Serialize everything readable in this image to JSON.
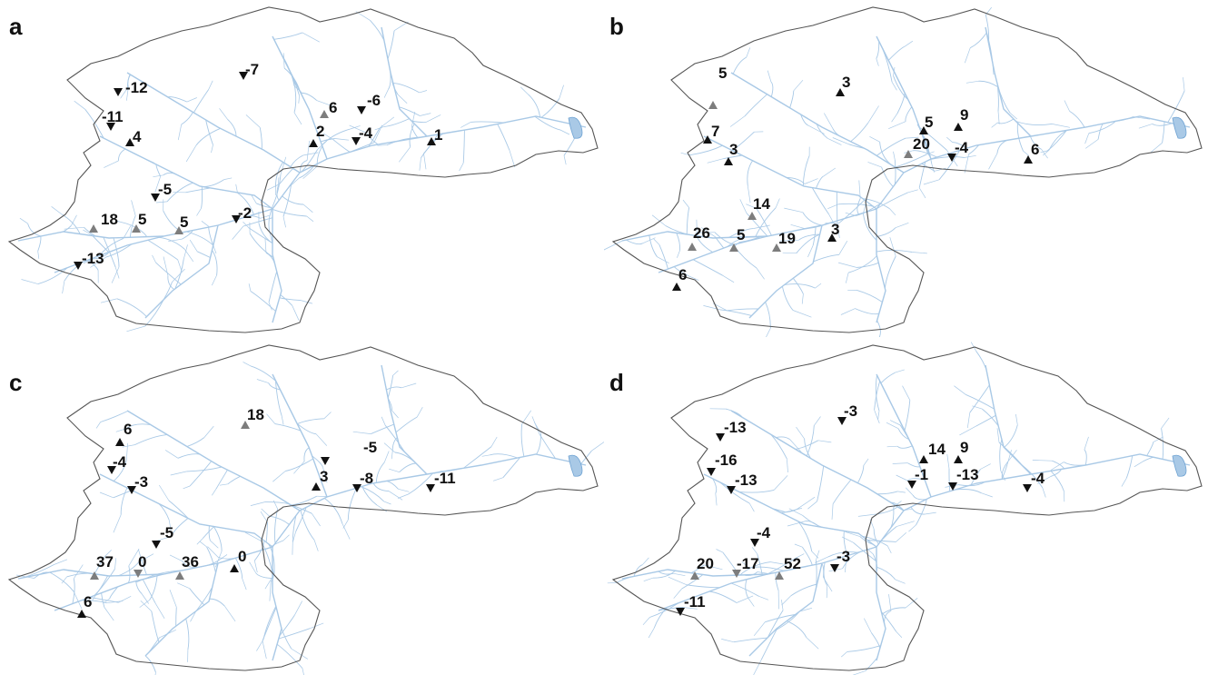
{
  "panels": [
    {
      "letter": "a",
      "stations": [
        {
          "id": "s01",
          "value": "-12",
          "dir": "down",
          "shade": "black"
        },
        {
          "id": "s02",
          "value": "-7",
          "dir": "down",
          "shade": "black"
        },
        {
          "id": "s03",
          "value": "-11",
          "dir": "down",
          "shade": "black"
        },
        {
          "id": "s04",
          "value": "4",
          "dir": "up",
          "shade": "black"
        },
        {
          "id": "s05",
          "value": "6",
          "dir": "up",
          "shade": "grey"
        },
        {
          "id": "s06",
          "value": "-6",
          "dir": "down",
          "shade": "black"
        },
        {
          "id": "s07",
          "value": "2",
          "dir": "up",
          "shade": "black"
        },
        {
          "id": "s08",
          "value": "-4",
          "dir": "down",
          "shade": "black"
        },
        {
          "id": "s09",
          "value": "1",
          "dir": "up",
          "shade": "black"
        },
        {
          "id": "s10",
          "value": "-5",
          "dir": "down",
          "shade": "black"
        },
        {
          "id": "s11",
          "value": "18",
          "dir": "up",
          "shade": "grey"
        },
        {
          "id": "s12",
          "value": "5",
          "dir": "up",
          "shade": "grey"
        },
        {
          "id": "s13",
          "value": "5",
          "dir": "up",
          "shade": "grey"
        },
        {
          "id": "s14",
          "value": "-2",
          "dir": "down",
          "shade": "black"
        },
        {
          "id": "s15",
          "value": "-13",
          "dir": "down",
          "shade": "black"
        }
      ]
    },
    {
      "letter": "b",
      "stations": [
        {
          "id": "s01",
          "value": "5",
          "dir": "up",
          "shade": "grey"
        },
        {
          "id": "s02",
          "value": "3",
          "dir": "up",
          "shade": "black"
        },
        {
          "id": "s03",
          "value": "7",
          "dir": "up",
          "shade": "black"
        },
        {
          "id": "s04",
          "value": "3",
          "dir": "up",
          "shade": "black"
        },
        {
          "id": "s05",
          "value": "5",
          "dir": "up",
          "shade": "black"
        },
        {
          "id": "s06",
          "value": "9",
          "dir": "up",
          "shade": "black"
        },
        {
          "id": "s07",
          "value": "20",
          "dir": "up",
          "shade": "grey"
        },
        {
          "id": "s08",
          "value": "-4",
          "dir": "down",
          "shade": "black"
        },
        {
          "id": "s09",
          "value": "6",
          "dir": "up",
          "shade": "black"
        },
        {
          "id": "s10",
          "value": "14",
          "dir": "up",
          "shade": "grey"
        },
        {
          "id": "s11",
          "value": "26",
          "dir": "up",
          "shade": "grey"
        },
        {
          "id": "s12",
          "value": "5",
          "dir": "up",
          "shade": "grey"
        },
        {
          "id": "s13",
          "value": "19",
          "dir": "up",
          "shade": "grey"
        },
        {
          "id": "s14",
          "value": "3",
          "dir": "up",
          "shade": "black"
        },
        {
          "id": "s15",
          "value": "6",
          "dir": "up",
          "shade": "black"
        }
      ]
    },
    {
      "letter": "c",
      "stations": [
        {
          "id": "s01",
          "value": "6",
          "dir": "up",
          "shade": "black"
        },
        {
          "id": "s02",
          "value": "18",
          "dir": "up",
          "shade": "grey"
        },
        {
          "id": "s03",
          "value": "-4",
          "dir": "down",
          "shade": "black"
        },
        {
          "id": "s04",
          "value": "-3",
          "dir": "down",
          "shade": "black"
        },
        {
          "id": "s05",
          "value": "-5",
          "dir": "down",
          "shade": "black"
        },
        {
          "id": "s06",
          "value": "3",
          "dir": "up",
          "shade": "black"
        },
        {
          "id": "s07",
          "value": "-8",
          "dir": "down",
          "shade": "black"
        },
        {
          "id": "s08",
          "value": "-11",
          "dir": "down",
          "shade": "black"
        },
        {
          "id": "s09",
          "value": "-5",
          "dir": "down",
          "shade": "black"
        },
        {
          "id": "s10",
          "value": "37",
          "dir": "up",
          "shade": "grey"
        },
        {
          "id": "s11",
          "value": "0",
          "dir": "down",
          "shade": "grey"
        },
        {
          "id": "s12",
          "value": "36",
          "dir": "up",
          "shade": "grey"
        },
        {
          "id": "s13",
          "value": "0",
          "dir": "up",
          "shade": "black"
        },
        {
          "id": "s14",
          "value": "6",
          "dir": "up",
          "shade": "black"
        }
      ]
    },
    {
      "letter": "d",
      "stations": [
        {
          "id": "s01",
          "value": "-13",
          "dir": "down",
          "shade": "black"
        },
        {
          "id": "s02",
          "value": "-3",
          "dir": "down",
          "shade": "black"
        },
        {
          "id": "s03",
          "value": "-16",
          "dir": "down",
          "shade": "black"
        },
        {
          "id": "s04",
          "value": "-13",
          "dir": "down",
          "shade": "black"
        },
        {
          "id": "s05",
          "value": "14",
          "dir": "up",
          "shade": "black"
        },
        {
          "id": "s06",
          "value": "9",
          "dir": "up",
          "shade": "black"
        },
        {
          "id": "s07",
          "value": "-1",
          "dir": "down",
          "shade": "black"
        },
        {
          "id": "s08",
          "value": "-13",
          "dir": "down",
          "shade": "black"
        },
        {
          "id": "s09",
          "value": "-4",
          "dir": "down",
          "shade": "black"
        },
        {
          "id": "s10",
          "value": "-4",
          "dir": "down",
          "shade": "black"
        },
        {
          "id": "s11",
          "value": "20",
          "dir": "up",
          "shade": "grey"
        },
        {
          "id": "s12",
          "value": "-17",
          "dir": "down",
          "shade": "grey"
        },
        {
          "id": "s13",
          "value": "52",
          "dir": "up",
          "shade": "grey"
        },
        {
          "id": "s14",
          "value": "-3",
          "dir": "down",
          "shade": "black"
        },
        {
          "id": "s15",
          "value": "-11",
          "dir": "down",
          "shade": "black"
        }
      ]
    }
  ],
  "colors": {
    "boundary": "#555555",
    "river": "#a9c9e6",
    "marker_dark": "#111111",
    "marker_grey": "#7d7d7d"
  }
}
